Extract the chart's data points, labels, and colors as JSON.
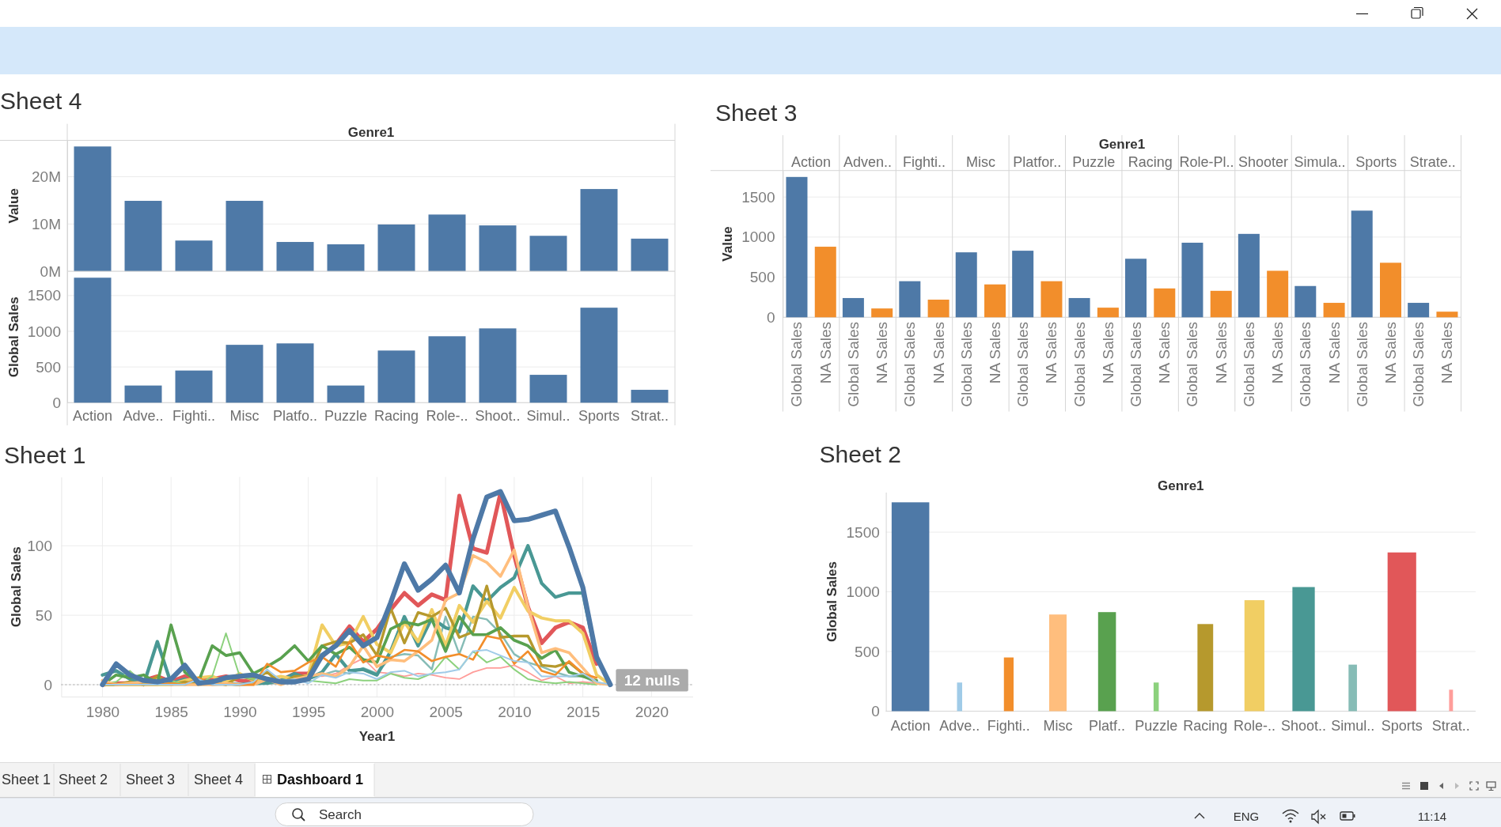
{
  "chart_data": [
    {
      "type": "bar",
      "title": "Sheet 4",
      "xlabel": "Genre1",
      "ylabel": "Value",
      "categories": [
        null,
        null,
        null,
        null,
        null,
        null,
        null,
        null,
        null,
        null,
        null,
        null
      ],
      "values": [
        26.4,
        14.9,
        6.5,
        14.9,
        6.2,
        5.7,
        9.9,
        12,
        9.7,
        7.5,
        17.4,
        6.9
      ],
      "color": "#4e79a7",
      "ylim": [
        0,
        27.7
      ],
      "yticks": [
        {
          "value": 0,
          "label": "0M"
        },
        {
          "value": 10,
          "label": "10M"
        },
        {
          "value": 20,
          "label": "20M"
        }
      ],
      "grid": "y"
    },
    {
      "type": "bar",
      "ylabel": "Global Sales",
      "categories": [
        "Action",
        "Adve..",
        "Fighti..",
        "Misc",
        "Platfo..",
        "Puzzle",
        "Racing",
        "Role-..",
        "Shoot..",
        "Simul..",
        "Sports",
        "Strat.."
      ],
      "values": [
        1750,
        240,
        450,
        810,
        830,
        240,
        730,
        930,
        1040,
        390,
        1330,
        180
      ],
      "color": "#4e79a7",
      "ylim": [
        0,
        1840
      ],
      "yticks": [
        0,
        500,
        1000,
        1500
      ],
      "grid": "y"
    },
    {
      "type": "bar",
      "title": "Sheet 3",
      "xlabel": "Genre1",
      "ylabel": "Value",
      "categories": [
        "Action",
        "Adven..",
        "Fighti..",
        "Misc",
        "Platfor..",
        "Puzzle",
        "Racing",
        "Role-Pl..",
        "Shooter",
        "Simula..",
        "Sports",
        "Strate.."
      ],
      "series": [
        {
          "name": "Global Sales",
          "color": "#4e79a7",
          "values": [
            1750,
            240,
            450,
            810,
            830,
            240,
            730,
            930,
            1040,
            390,
            1330,
            180
          ]
        },
        {
          "name": "NA Sales",
          "color": "#f28e2b",
          "values": [
            880,
            110,
            220,
            410,
            450,
            120,
            360,
            330,
            580,
            180,
            680,
            70
          ]
        }
      ],
      "ylim": [
        0,
        1830
      ],
      "yticks": [
        0,
        500,
        1000,
        1500
      ],
      "grid": "y"
    },
    {
      "type": "line",
      "title": "Sheet 1",
      "xlabel": "Year1",
      "ylabel": "Global Sales",
      "x": [
        1980,
        1981,
        1982,
        1983,
        1984,
        1985,
        1986,
        1987,
        1988,
        1989,
        1990,
        1991,
        1992,
        1993,
        1994,
        1995,
        1996,
        1997,
        1998,
        1999,
        2000,
        2001,
        2002,
        2003,
        2004,
        2005,
        2006,
        2007,
        2008,
        2009,
        2010,
        2011,
        2012,
        2013,
        2014,
        2015,
        2016,
        2017
      ],
      "series": [
        {
          "color": "#4e79a7",
          "values": [
            0,
            15,
            7,
            3,
            2,
            4,
            14,
            1,
            2,
            5,
            6,
            7,
            4,
            2,
            2,
            4,
            21,
            28,
            39,
            28,
            34,
            59,
            87,
            68,
            76,
            86,
            66,
            105,
            135,
            139,
            118,
            119,
            122,
            125,
            99,
            70,
            20,
            0
          ]
        },
        {
          "color": "#a0cbe8",
          "values": [
            0,
            0,
            0,
            0,
            0,
            0,
            0,
            4,
            0,
            0,
            0,
            2,
            11,
            3,
            4,
            1,
            7,
            5,
            9,
            8,
            4,
            9,
            10,
            6,
            8,
            9,
            11,
            24,
            25,
            21,
            17,
            16,
            6,
            6,
            6,
            8,
            2,
            0
          ]
        },
        {
          "color": "#f28e2b",
          "values": [
            1,
            0,
            0,
            0,
            0,
            1,
            0,
            5,
            0,
            0,
            0,
            0,
            15,
            9,
            10,
            16,
            20,
            13,
            31,
            16,
            21,
            19,
            25,
            24,
            17,
            20,
            22,
            18,
            35,
            33,
            15,
            24,
            10,
            7,
            17,
            8,
            5,
            null
          ]
        },
        {
          "color": "#ffbe7d",
          "values": [
            3,
            0,
            1,
            2,
            1,
            0,
            0,
            0,
            0,
            1,
            0,
            0,
            4,
            0,
            4,
            6,
            8,
            6,
            13,
            28,
            13,
            18,
            17,
            24,
            32,
            61,
            66,
            93,
            88,
            78,
            97,
            56,
            23,
            26,
            23,
            12,
            1,
            0
          ]
        },
        {
          "color": "#59a14f",
          "values": [
            0,
            7,
            5,
            7,
            1,
            43,
            9,
            2,
            28,
            21,
            23,
            8,
            13,
            19,
            28,
            17,
            28,
            22,
            27,
            18,
            16,
            40,
            45,
            43,
            47,
            24,
            49,
            36,
            36,
            41,
            32,
            28,
            19,
            25,
            9,
            6,
            3,
            null
          ]
        },
        {
          "color": "#8cd17d",
          "values": [
            1,
            2,
            10,
            1,
            3,
            3,
            0,
            0,
            6,
            37,
            6,
            4,
            5,
            2,
            2,
            3,
            2,
            1,
            4,
            3,
            3,
            8,
            5,
            4,
            8,
            20,
            11,
            24,
            16,
            20,
            11,
            4,
            2,
            1,
            2,
            1,
            0,
            null
          ]
        },
        {
          "color": "#b6992d",
          "values": [
            0,
            0,
            2,
            0,
            6,
            0,
            2,
            0,
            2,
            0,
            6,
            4,
            9,
            1,
            6,
            6,
            28,
            31,
            30,
            36,
            21,
            55,
            30,
            52,
            49,
            55,
            34,
            38,
            71,
            34,
            35,
            35,
            14,
            13,
            16,
            8,
            2,
            null
          ]
        },
        {
          "color": "#f1ce63",
          "values": [
            0,
            0,
            0,
            0,
            0,
            0,
            3,
            5,
            6,
            2,
            8,
            3,
            4,
            6,
            4,
            7,
            43,
            28,
            30,
            49,
            29,
            23,
            45,
            31,
            54,
            28,
            57,
            45,
            60,
            48,
            70,
            53,
            48,
            46,
            46,
            37,
            7,
            0
          ]
        },
        {
          "color": "#499894",
          "values": [
            7,
            10,
            4,
            0,
            31,
            1,
            4,
            1,
            1,
            1,
            0,
            1,
            1,
            3,
            8,
            4,
            9,
            22,
            10,
            11,
            7,
            24,
            49,
            28,
            48,
            41,
            38,
            71,
            60,
            70,
            77,
            100,
            73,
            63,
            66,
            66,
            18,
            null
          ]
        },
        {
          "color": "#86bcb6",
          "values": [
            0,
            0,
            0,
            0,
            0,
            0,
            0,
            0,
            0,
            0,
            0,
            0,
            1,
            1,
            3,
            4,
            7,
            10,
            8,
            12,
            8,
            20,
            22,
            21,
            11,
            49,
            22,
            49,
            47,
            37,
            22,
            16,
            13,
            9,
            6,
            6,
            1,
            0
          ]
        },
        {
          "color": "#e15759",
          "values": [
            0,
            1,
            1,
            3,
            6,
            2,
            6,
            4,
            4,
            6,
            3,
            2,
            3,
            3,
            8,
            8,
            20,
            29,
            42,
            31,
            40,
            54,
            66,
            57,
            65,
            61,
            136,
            98,
            95,
            138,
            93,
            56,
            30,
            41,
            45,
            41,
            15,
            null
          ]
        },
        {
          "color": "#ff9d9a",
          "values": [
            0,
            0,
            0,
            0,
            0,
            0,
            0,
            0,
            0,
            0,
            0,
            1,
            1,
            1,
            4,
            7,
            6,
            8,
            14,
            19,
            9,
            8,
            6,
            8,
            7,
            5,
            4,
            9,
            12,
            12,
            14,
            9,
            3,
            6,
            1,
            2,
            1,
            null
          ]
        }
      ],
      "xlim": [
        1977,
        2023
      ],
      "ylim": [
        -8.6,
        149.5
      ],
      "xticks": [
        1980,
        1985,
        1990,
        1995,
        2000,
        2005,
        2010,
        2015,
        2020
      ],
      "yticks": [
        0,
        50,
        100
      ],
      "grid": true,
      "ref_lines": [
        {
          "axis": "y",
          "value": 0,
          "color": "#a6a6a6",
          "line_style": "dotted"
        }
      ],
      "annotations": [
        "12 nulls"
      ]
    },
    {
      "type": "bar",
      "title": "Sheet 2",
      "xlabel": "Genre1",
      "ylabel": "Global Sales",
      "categories": [
        "Action",
        "Adve..",
        "Fighti..",
        "Misc",
        "Platf..",
        "Puzzle",
        "Racing",
        "Role-..",
        "Shoot..",
        "Simul..",
        "Sports",
        "Strat.."
      ],
      "values": [
        1750,
        240,
        450,
        810,
        830,
        240,
        730,
        930,
        1040,
        390,
        1330,
        180
      ],
      "colors": [
        "#4e79a7",
        "#a0cbe8",
        "#f28e2b",
        "#ffbe7d",
        "#59a14f",
        "#8cd17d",
        "#b6992d",
        "#f1ce63",
        "#499894",
        "#86bcb6",
        "#e15759",
        "#ff9d9a"
      ],
      "ylim": [
        0,
        1835
      ],
      "yticks": [
        0,
        500,
        1000,
        1500
      ],
      "grid": "y"
    },
    {
      "type": "other",
      "annotations": [
        "Sheet 1",
        "Sheet 2",
        "Sheet 3",
        "Sheet 4",
        "Dashboard 1",
        "Search",
        "ENG",
        "11:14"
      ]
    }
  ]
}
